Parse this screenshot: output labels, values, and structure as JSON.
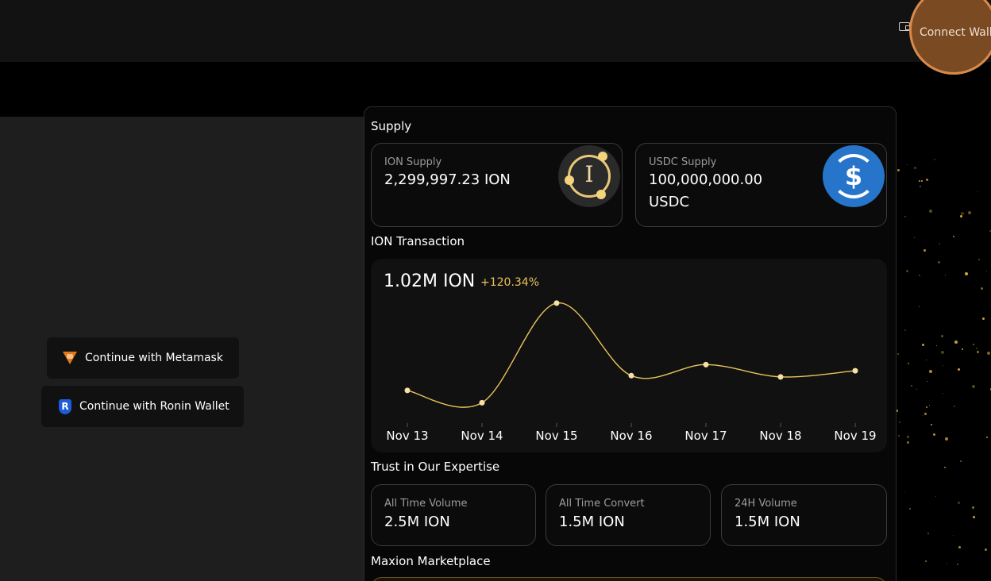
{
  "header": {
    "connect_label": "Connect Wallet",
    "wallet_icon": "wallet-icon"
  },
  "auth": {
    "metamask_label": "Continue with Metamask",
    "ronin_label": "Continue with Ronin Wallet"
  },
  "supply": {
    "title": "Supply",
    "ion": {
      "label": "ION Supply",
      "value": "2,299,997.23 ION"
    },
    "usdc": {
      "label": "USDC Supply",
      "value": "100,000,000.00 USDC"
    }
  },
  "transaction": {
    "title": "ION Transaction",
    "total": "1.02M ION",
    "change": "+120.34%"
  },
  "chart_data": {
    "type": "line",
    "categories": [
      "Nov 13",
      "Nov 14",
      "Nov 15",
      "Nov 16",
      "Nov 17",
      "Nov 18",
      "Nov 19"
    ],
    "series": [
      {
        "values": [
          0.22,
          0.12,
          0.93,
          0.34,
          0.43,
          0.33,
          0.38
        ]
      }
    ],
    "ylim": [
      0,
      1
    ],
    "grid": false,
    "color": "#e8c25a"
  },
  "expertise": {
    "title": "Trust in Our Expertise",
    "stats": [
      {
        "label": "All Time Volume",
        "value": "2.5M ION"
      },
      {
        "label": "All Time Convert",
        "value": "1.5M ION"
      },
      {
        "label": "24H Volume",
        "value": "1.5M ION"
      }
    ]
  },
  "marketplace": {
    "title": "Maxion Marketplace"
  }
}
